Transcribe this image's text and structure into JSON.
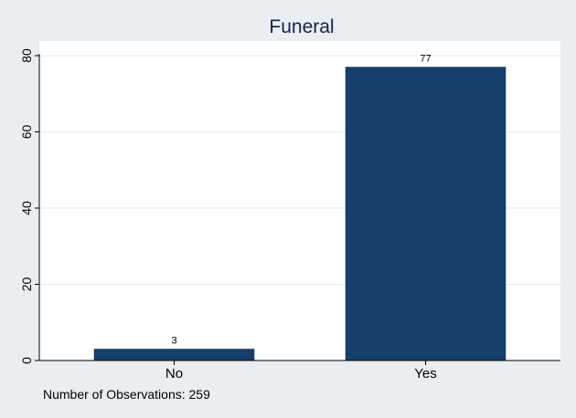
{
  "colors": {
    "background": "#e8eef1",
    "plot_background": "#ffffff",
    "bar": "#163f6e",
    "grid": "#e3e9ec",
    "title": "#1a1f4d"
  },
  "chart_data": {
    "type": "bar",
    "title": "Funeral",
    "categories": [
      "No",
      "Yes"
    ],
    "values": [
      3,
      77
    ],
    "data_labels": [
      "3",
      "77"
    ],
    "xlabel": "",
    "ylabel": "",
    "ylim": [
      0,
      80
    ],
    "yticks": [
      0,
      20,
      40,
      60,
      80
    ],
    "ytick_labels": [
      "0",
      "20",
      "40",
      "60",
      "80"
    ],
    "grid": true,
    "note": "Number of Observations: 259"
  }
}
